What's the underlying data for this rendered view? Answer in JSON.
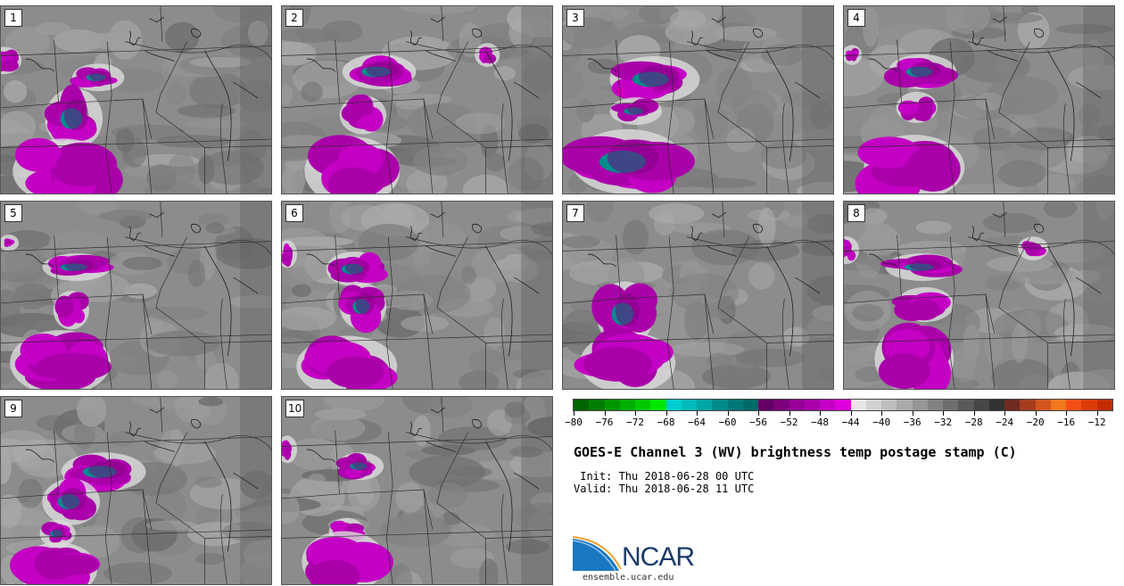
{
  "title": "GOES-E Channel 3 (WV) brightness temp postage stamp (C)",
  "init": " Init: Thu 2018-06-28 00 UTC",
  "valid": "Valid: Thu 2018-06-28 11 UTC",
  "logo": {
    "name": "NCAR",
    "url": "ensemble.ucar.edu"
  },
  "chart_data": {
    "type": "heatmap",
    "title": "GOES-E Channel 3 (WV) brightness temp postage stamp (C)",
    "units": "C",
    "colorbar": {
      "ticks": [
        -80,
        -76,
        -72,
        -68,
        -64,
        -60,
        -56,
        -52,
        -48,
        -44,
        -40,
        -36,
        -32,
        -28,
        -24,
        -20,
        -16,
        -12
      ],
      "range": [
        -80,
        -10
      ],
      "bin_width": 2,
      "colors": [
        "#006400",
        "#007d00",
        "#009600",
        "#00af00",
        "#00c800",
        "#00e600",
        "#00cdcd",
        "#00b9b9",
        "#00a5a5",
        "#008c8c",
        "#007878",
        "#006969",
        "#640064",
        "#7d007d",
        "#960096",
        "#aa00aa",
        "#c300c3",
        "#dc00dc",
        "#e6e6e6",
        "#d2d2d2",
        "#bebebe",
        "#aaaaaa",
        "#969696",
        "#828282",
        "#6e6e6e",
        "#5a5a5a",
        "#464646",
        "#323232",
        "#6e2a1e",
        "#a53c1e",
        "#d2551e",
        "#f0781e",
        "#f55014",
        "#dc3c0a",
        "#c32d05"
      ]
    },
    "stamps": [
      {
        "label": "1",
        "features": [
          {
            "x": 0.01,
            "y": 0.29,
            "rx": 0.05,
            "ry": 0.05,
            "core": false
          },
          {
            "x": 0.36,
            "y": 0.38,
            "rx": 0.08,
            "ry": 0.05,
            "core": true
          },
          {
            "x": 0.27,
            "y": 0.6,
            "rx": 0.09,
            "ry": 0.14,
            "core": true
          },
          {
            "x": 0.23,
            "y": 0.88,
            "rx": 0.17,
            "ry": 0.15,
            "core": false
          }
        ]
      },
      {
        "label": "2",
        "features": [
          {
            "x": 0.36,
            "y": 0.35,
            "rx": 0.12,
            "ry": 0.07,
            "core": true
          },
          {
            "x": 0.76,
            "y": 0.26,
            "rx": 0.03,
            "ry": 0.04,
            "core": false
          },
          {
            "x": 0.3,
            "y": 0.58,
            "rx": 0.07,
            "ry": 0.08,
            "core": false
          },
          {
            "x": 0.26,
            "y": 0.88,
            "rx": 0.16,
            "ry": 0.16,
            "core": false
          }
        ]
      },
      {
        "label": "3",
        "features": [
          {
            "x": 0.34,
            "y": 0.39,
            "rx": 0.15,
            "ry": 0.1,
            "core": true
          },
          {
            "x": 0.27,
            "y": 0.56,
            "rx": 0.08,
            "ry": 0.05,
            "core": true
          },
          {
            "x": 0.24,
            "y": 0.83,
            "rx": 0.19,
            "ry": 0.15,
            "core": true
          }
        ]
      },
      {
        "label": "4",
        "features": [
          {
            "x": 0.29,
            "y": 0.35,
            "rx": 0.11,
            "ry": 0.07,
            "core": true
          },
          {
            "x": 0.27,
            "y": 0.54,
            "rx": 0.06,
            "ry": 0.06,
            "core": false
          },
          {
            "x": 0.26,
            "y": 0.86,
            "rx": 0.17,
            "ry": 0.15,
            "core": false
          },
          {
            "x": 0.03,
            "y": 0.26,
            "rx": 0.02,
            "ry": 0.03,
            "core": false
          }
        ]
      },
      {
        "label": "5",
        "features": [
          {
            "x": 0.28,
            "y": 0.35,
            "rx": 0.11,
            "ry": 0.05,
            "core": true
          },
          {
            "x": 0.26,
            "y": 0.58,
            "rx": 0.05,
            "ry": 0.08,
            "core": false
          },
          {
            "x": 0.22,
            "y": 0.86,
            "rx": 0.17,
            "ry": 0.15,
            "core": false
          },
          {
            "x": 0.03,
            "y": 0.22,
            "rx": 0.02,
            "ry": 0.02,
            "core": false
          }
        ]
      },
      {
        "label": "6",
        "features": [
          {
            "x": 0.27,
            "y": 0.36,
            "rx": 0.09,
            "ry": 0.07,
            "core": true
          },
          {
            "x": 0.3,
            "y": 0.56,
            "rx": 0.07,
            "ry": 0.1,
            "core": true
          },
          {
            "x": 0.24,
            "y": 0.88,
            "rx": 0.17,
            "ry": 0.14,
            "core": false
          },
          {
            "x": 0.02,
            "y": 0.28,
            "rx": 0.02,
            "ry": 0.05,
            "core": false
          }
        ]
      },
      {
        "label": "7",
        "features": [
          {
            "x": 0.23,
            "y": 0.6,
            "rx": 0.09,
            "ry": 0.15,
            "core": true
          },
          {
            "x": 0.24,
            "y": 0.86,
            "rx": 0.16,
            "ry": 0.14,
            "core": false
          }
        ]
      },
      {
        "label": "8",
        "features": [
          {
            "x": 0.29,
            "y": 0.35,
            "rx": 0.12,
            "ry": 0.05,
            "core": true
          },
          {
            "x": 0.7,
            "y": 0.25,
            "rx": 0.04,
            "ry": 0.04,
            "core": false
          },
          {
            "x": 0.3,
            "y": 0.55,
            "rx": 0.09,
            "ry": 0.07,
            "core": false
          },
          {
            "x": 0.26,
            "y": 0.84,
            "rx": 0.13,
            "ry": 0.16,
            "core": false
          },
          {
            "x": 0.01,
            "y": 0.26,
            "rx": 0.03,
            "ry": 0.05,
            "core": false
          }
        ]
      },
      {
        "label": "9",
        "features": [
          {
            "x": 0.38,
            "y": 0.4,
            "rx": 0.14,
            "ry": 0.08,
            "core": true
          },
          {
            "x": 0.26,
            "y": 0.56,
            "rx": 0.09,
            "ry": 0.1,
            "core": true
          },
          {
            "x": 0.21,
            "y": 0.73,
            "rx": 0.05,
            "ry": 0.05,
            "core": true
          },
          {
            "x": 0.21,
            "y": 0.92,
            "rx": 0.13,
            "ry": 0.12,
            "core": false
          }
        ]
      },
      {
        "label": "10",
        "features": [
          {
            "x": 0.29,
            "y": 0.37,
            "rx": 0.07,
            "ry": 0.05,
            "core": true
          },
          {
            "x": 0.24,
            "y": 0.72,
            "rx": 0.05,
            "ry": 0.05,
            "core": false
          },
          {
            "x": 0.23,
            "y": 0.88,
            "rx": 0.14,
            "ry": 0.14,
            "core": false
          },
          {
            "x": 0.02,
            "y": 0.28,
            "rx": 0.02,
            "ry": 0.05,
            "core": false
          }
        ]
      }
    ]
  }
}
